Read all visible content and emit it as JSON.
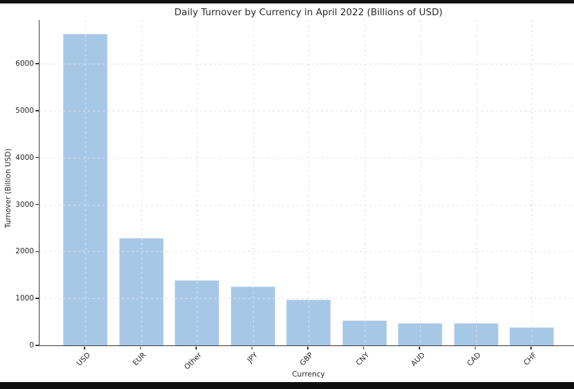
{
  "window": {
    "frame_color": "#0e0e0e",
    "figure_background": "#ffffff"
  },
  "chart_data": {
    "type": "bar",
    "title": "Daily Turnover by Currency in April 2022 (Billions of USD)",
    "xlabel": "Currency",
    "ylabel": "Turnover (Billion USD)",
    "categories": [
      "USD",
      "EUR",
      "Other",
      "JPY",
      "GBP",
      "CNY",
      "AUD",
      "CAD",
      "CHF"
    ],
    "values": [
      6639,
      2292,
      1380,
      1253,
      968,
      526,
      479,
      466,
      390
    ],
    "ylim": [
      0,
      6930
    ],
    "yticks": [
      0,
      1000,
      2000,
      3000,
      4000,
      5000,
      6000
    ],
    "xtick_rotation": 45,
    "grid": {
      "visible": true,
      "style": "dashed",
      "color": "#e0e0e0",
      "axes": "both"
    },
    "legend_position": "none",
    "bar_color": "#a7c7e7",
    "bar_edge_color": "#c2d8ee",
    "axis_color": "#3a3a3a",
    "text_color": "#262626"
  }
}
